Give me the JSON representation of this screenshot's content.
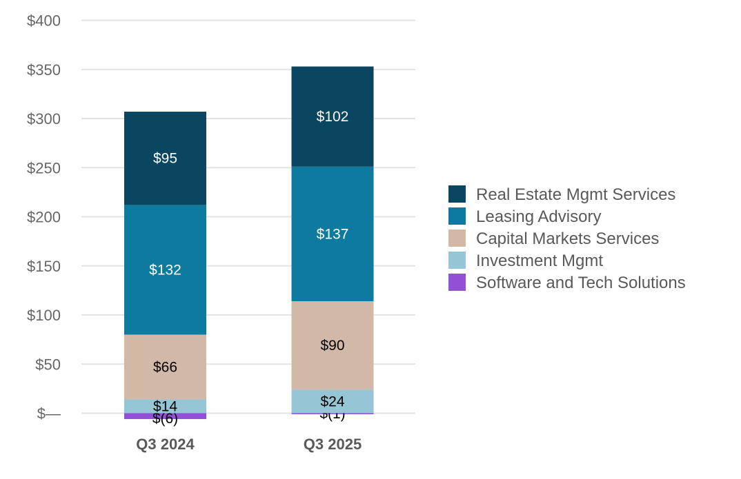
{
  "chart_data": {
    "type": "bar",
    "stacked": true,
    "categories": [
      "Q3 2024",
      "Q3 2025"
    ],
    "series": [
      {
        "name": "Software and Tech Solutions",
        "color": "#9150d6",
        "values": [
          -6,
          -1
        ],
        "labels": [
          "$(6)",
          "$(1)"
        ]
      },
      {
        "name": "Investment Mgmt",
        "color": "#96c5d5",
        "values": [
          14,
          24
        ],
        "labels": [
          "$14",
          "$24"
        ]
      },
      {
        "name": "Capital Markets Services",
        "color": "#d2b9a7",
        "values": [
          66,
          90
        ],
        "labels": [
          "$66",
          "$90"
        ]
      },
      {
        "name": "Leasing Advisory",
        "color": "#0d7ba0",
        "values": [
          132,
          137
        ],
        "labels": [
          "$132",
          "$137"
        ]
      },
      {
        "name": "Real Estate Mgmt Services",
        "color": "#0b4660",
        "values": [
          95,
          102
        ],
        "labels": [
          "$95",
          "$102"
        ]
      }
    ],
    "legend_order": [
      "Real Estate Mgmt Services",
      "Leasing Advisory",
      "Capital Markets Services",
      "Investment Mgmt",
      "Software and Tech Solutions"
    ],
    "yticks": [
      0,
      50,
      100,
      150,
      200,
      250,
      300,
      350,
      400
    ],
    "ytick_labels": [
      "$—",
      "$50",
      "$100",
      "$150",
      "$200",
      "$250",
      "$300",
      "$350",
      "$400"
    ],
    "ylim": [
      0,
      400
    ],
    "grid": true,
    "legend_position": "right"
  }
}
